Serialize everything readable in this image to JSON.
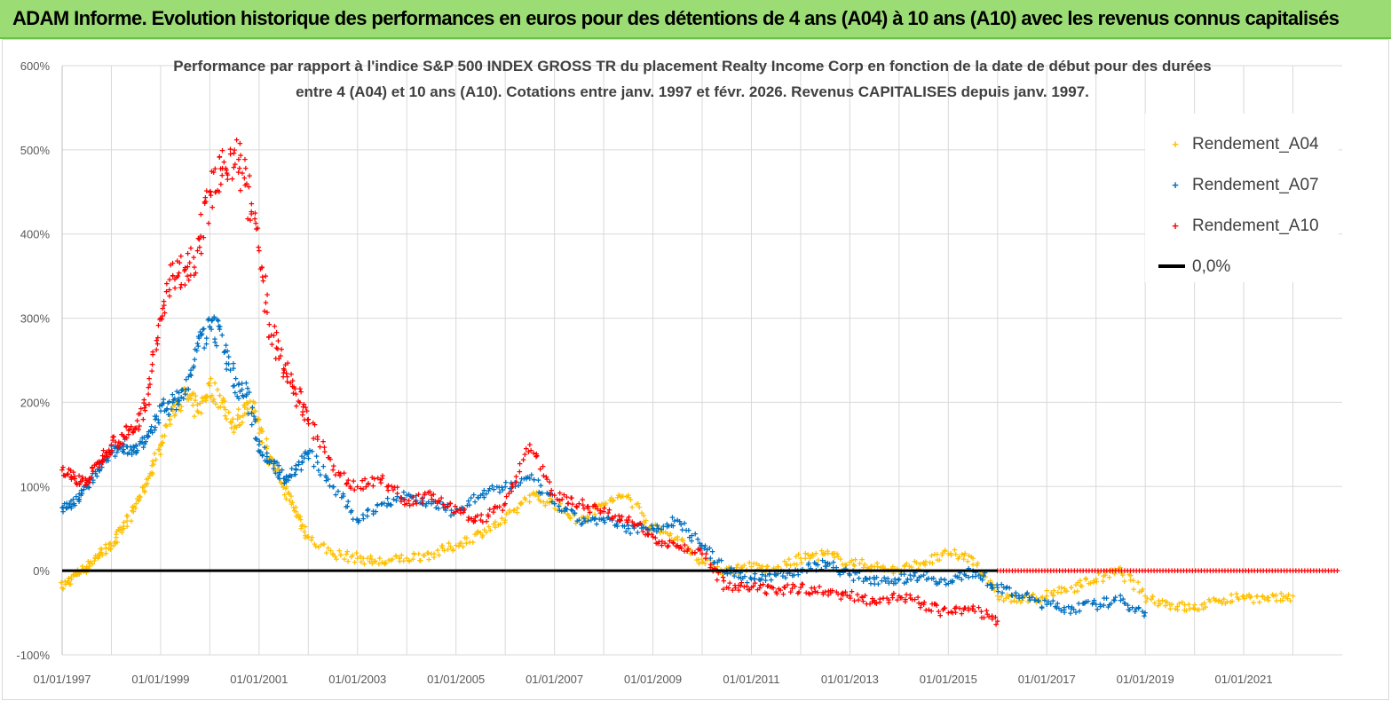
{
  "banner": {
    "title": "ADAM Informe. Evolution historique des performances en euros pour des détentions de 4 ans (A04) à 10 ans (A10) avec les revenus connus capitalisés"
  },
  "colors": {
    "banner_bg": "#9bdc74",
    "A04": "#ffc000",
    "A07": "#0070c0",
    "A10": "#ff0000",
    "zero": "#000000",
    "grid": "#d9d9d9"
  },
  "chart_data": {
    "type": "scatter",
    "title_line1": "Performance par rapport à l'indice S&P 500 INDEX GROSS TR  du placement Realty Income Corp en fonction de la date de début pour des durées",
    "title_line2": "entre 4 (A04) et 10 ans (A10).  Cotations entre janv. 1997 et févr. 2026. Revenus  CAPITALISES depuis janv. 1997.",
    "x_range": [
      "1997-01-01",
      "2023-01-01"
    ],
    "ylim": [
      -100,
      600
    ],
    "y_ticks": [
      -100,
      0,
      100,
      200,
      300,
      400,
      500,
      600
    ],
    "y_tick_labels": [
      "-100%",
      "0%",
      "100%",
      "200%",
      "300%",
      "400%",
      "500%",
      "600%"
    ],
    "x_tick_labels": [
      "01/01/1997",
      "01/01/1999",
      "01/01/2001",
      "01/01/2003",
      "01/01/2005",
      "01/01/2007",
      "01/01/2009",
      "01/01/2011",
      "01/01/2013",
      "01/01/2015",
      "01/01/2017",
      "01/01/2019",
      "01/01/2021"
    ],
    "grid": true,
    "legend_position": "top-right",
    "legend": [
      {
        "name": "Rendement_A04",
        "marker": "+"
      },
      {
        "name": "Rendement_A07",
        "marker": "+"
      },
      {
        "name": "Rendement_A10",
        "marker": "+"
      },
      {
        "name": "0,0%",
        "marker": "line"
      }
    ],
    "series": [
      {
        "name": "Rendement_A04",
        "x": [
          1997.0,
          1997.25,
          1997.5,
          1997.75,
          1998.0,
          1998.25,
          1998.5,
          1998.75,
          1999.0,
          1999.25,
          1999.5,
          1999.75,
          2000.0,
          2000.25,
          2000.5,
          2000.75,
          2001.0,
          2001.25,
          2001.5,
          2001.75,
          2002.0,
          2002.5,
          2003.0,
          2003.5,
          2004.0,
          2004.5,
          2005.0,
          2005.5,
          2006.0,
          2006.5,
          2007.0,
          2007.5,
          2008.0,
          2008.5,
          2009.0,
          2009.5,
          2010.0,
          2010.5,
          2011.0,
          2011.5,
          2012.0,
          2012.5,
          2013.0,
          2013.5,
          2014.0,
          2014.5,
          2015.0,
          2015.5,
          2016.0,
          2016.5,
          2017.0,
          2017.5,
          2018.0,
          2018.5,
          2019.0,
          2019.5,
          2020.0,
          2020.5,
          2021.0,
          2021.5,
          2022.0
        ],
        "y": [
          -20,
          -5,
          5,
          20,
          30,
          50,
          80,
          110,
          150,
          190,
          210,
          190,
          220,
          200,
          170,
          200,
          180,
          130,
          100,
          70,
          40,
          20,
          15,
          10,
          15,
          20,
          30,
          45,
          60,
          90,
          80,
          60,
          80,
          90,
          50,
          40,
          10,
          0,
          5,
          0,
          15,
          20,
          10,
          5,
          0,
          10,
          20,
          15,
          -30,
          -35,
          -30,
          -20,
          -10,
          0,
          -30,
          -40,
          -45,
          -35,
          -30,
          -35,
          -30
        ]
      },
      {
        "name": "Rendement_A07",
        "x": [
          1997.0,
          1997.25,
          1997.5,
          1997.75,
          1998.0,
          1998.25,
          1998.5,
          1998.75,
          1999.0,
          1999.25,
          1999.5,
          1999.75,
          2000.0,
          2000.25,
          2000.5,
          2000.75,
          2001.0,
          2001.25,
          2001.5,
          2001.75,
          2002.0,
          2002.5,
          2003.0,
          2003.5,
          2004.0,
          2004.5,
          2005.0,
          2005.5,
          2006.0,
          2006.5,
          2007.0,
          2007.5,
          2008.0,
          2008.5,
          2009.0,
          2009.5,
          2010.0,
          2010.5,
          2011.0,
          2011.5,
          2012.0,
          2012.5,
          2013.0,
          2013.5,
          2014.0,
          2014.5,
          2015.0,
          2015.5,
          2016.0,
          2016.5,
          2017.0,
          2017.5,
          2018.0,
          2018.5,
          2019.0
        ],
        "y": [
          75,
          80,
          100,
          120,
          140,
          150,
          140,
          160,
          190,
          200,
          210,
          270,
          290,
          280,
          220,
          210,
          150,
          130,
          110,
          120,
          140,
          100,
          60,
          80,
          90,
          80,
          70,
          90,
          100,
          110,
          80,
          60,
          60,
          50,
          50,
          60,
          30,
          0,
          -10,
          -5,
          0,
          10,
          -5,
          -10,
          -10,
          -5,
          -15,
          0,
          -20,
          -30,
          -40,
          -45,
          -40,
          -35,
          -50
        ]
      },
      {
        "name": "Rendement_A10",
        "x": [
          1997.0,
          1997.25,
          1997.5,
          1997.75,
          1998.0,
          1998.25,
          1998.5,
          1998.75,
          1999.0,
          1999.25,
          1999.5,
          1999.75,
          2000.0,
          2000.25,
          2000.5,
          2000.75,
          2001.0,
          2001.25,
          2001.5,
          2001.75,
          2002.0,
          2002.5,
          2003.0,
          2003.5,
          2004.0,
          2004.5,
          2005.0,
          2005.5,
          2006.0,
          2006.5,
          2007.0,
          2007.5,
          2008.0,
          2008.5,
          2009.0,
          2009.5,
          2010.0,
          2010.5,
          2011.0,
          2011.5,
          2012.0,
          2012.5,
          2013.0,
          2013.5,
          2014.0,
          2014.5,
          2015.0,
          2015.5,
          2016.0
        ],
        "y": [
          120,
          110,
          105,
          130,
          150,
          160,
          170,
          210,
          300,
          350,
          360,
          380,
          450,
          470,
          500,
          460,
          380,
          280,
          240,
          210,
          180,
          120,
          100,
          110,
          80,
          90,
          70,
          60,
          80,
          150,
          90,
          80,
          70,
          60,
          40,
          30,
          20,
          -20,
          -20,
          -25,
          -20,
          -25,
          -30,
          -35,
          -30,
          -40,
          -50,
          -45,
          -60
        ]
      },
      {
        "name": "0,0%",
        "x": [
          1997.0,
          2016.0,
          2023.0
        ],
        "y": [
          0,
          0,
          0
        ]
      }
    ]
  }
}
